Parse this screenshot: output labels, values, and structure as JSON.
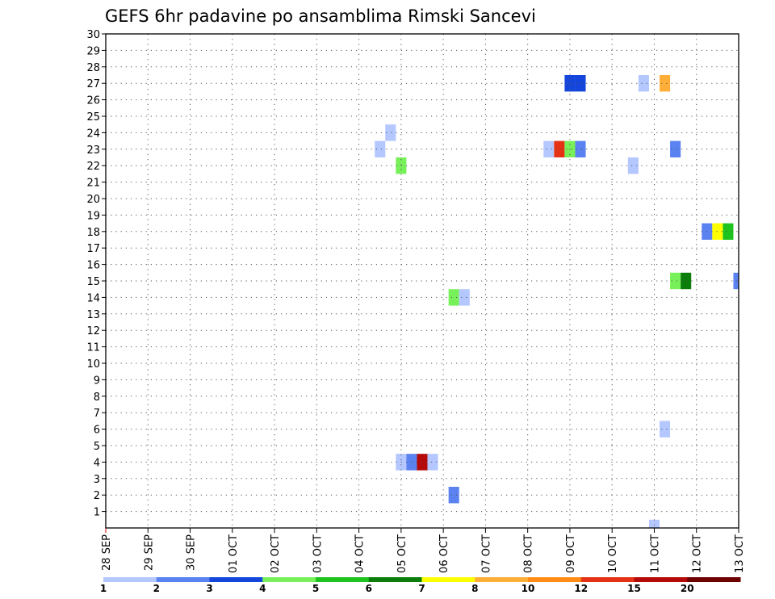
{
  "chart_data": {
    "type": "heatmap",
    "title": "GEFS 6hr padavine po ansamblima Rimski Sancevi",
    "x_labels": [
      "28 SEP",
      "29 SEP",
      "30 SEP",
      "01 OCT",
      "02 OCT",
      "03 OCT",
      "04 OCT",
      "05 OCT",
      "06 OCT",
      "07 OCT",
      "08 OCT",
      "09 OCT",
      "10 OCT",
      "11 OCT",
      "12 OCT",
      "13 OCT"
    ],
    "y_ticks": [
      1,
      2,
      3,
      4,
      5,
      6,
      7,
      8,
      9,
      10,
      11,
      12,
      13,
      14,
      15,
      16,
      17,
      18,
      19,
      20,
      21,
      22,
      23,
      24,
      25,
      26,
      27,
      28,
      29,
      30
    ],
    "xlim": [
      0,
      60
    ],
    "ylim": [
      0,
      30
    ],
    "grid": true,
    "colorbar": {
      "labels": [
        "1",
        "2",
        "3",
        "4",
        "5",
        "6",
        "7",
        "8",
        "10",
        "12",
        "15",
        "20"
      ],
      "colors": [
        "#b4c8ff",
        "#5a82f0",
        "#1446dc",
        "#78f05a",
        "#1ec31e",
        "#0a7d0a",
        "#ffff00",
        "#ffaf37",
        "#ff8c14",
        "#e63214",
        "#b40a0a",
        "#6e0000"
      ]
    },
    "cells": [
      {
        "x": 44,
        "y": 27,
        "v": 3
      },
      {
        "x": 45,
        "y": 27,
        "v": 3
      },
      {
        "x": 51,
        "y": 27,
        "v": 1
      },
      {
        "x": 53,
        "y": 27,
        "v": 8
      },
      {
        "x": 27,
        "y": 24,
        "v": 1
      },
      {
        "x": 26,
        "y": 23,
        "v": 1
      },
      {
        "x": 42,
        "y": 23,
        "v": 1
      },
      {
        "x": 43,
        "y": 23,
        "v": 12
      },
      {
        "x": 44,
        "y": 23,
        "v": 4
      },
      {
        "x": 45,
        "y": 23,
        "v": 2
      },
      {
        "x": 54,
        "y": 23,
        "v": 2
      },
      {
        "x": 28,
        "y": 22,
        "v": 4
      },
      {
        "x": 50,
        "y": 22,
        "v": 1
      },
      {
        "x": 57,
        "y": 18,
        "v": 2
      },
      {
        "x": 58,
        "y": 18,
        "v": 7
      },
      {
        "x": 59,
        "y": 18,
        "v": 5
      },
      {
        "x": 54,
        "y": 15,
        "v": 4
      },
      {
        "x": 55,
        "y": 15,
        "v": 6
      },
      {
        "x": 60,
        "y": 15,
        "v": 2
      },
      {
        "x": 33,
        "y": 14,
        "v": 4
      },
      {
        "x": 34,
        "y": 14,
        "v": 1
      },
      {
        "x": 53,
        "y": 6,
        "v": 1
      },
      {
        "x": 28,
        "y": 4,
        "v": 1
      },
      {
        "x": 29,
        "y": 4,
        "v": 2
      },
      {
        "x": 30,
        "y": 4,
        "v": 15
      },
      {
        "x": 31,
        "y": 4,
        "v": 1
      },
      {
        "x": 33,
        "y": 2,
        "v": 2
      },
      {
        "x": 52,
        "y": 0,
        "v": 1
      }
    ]
  }
}
